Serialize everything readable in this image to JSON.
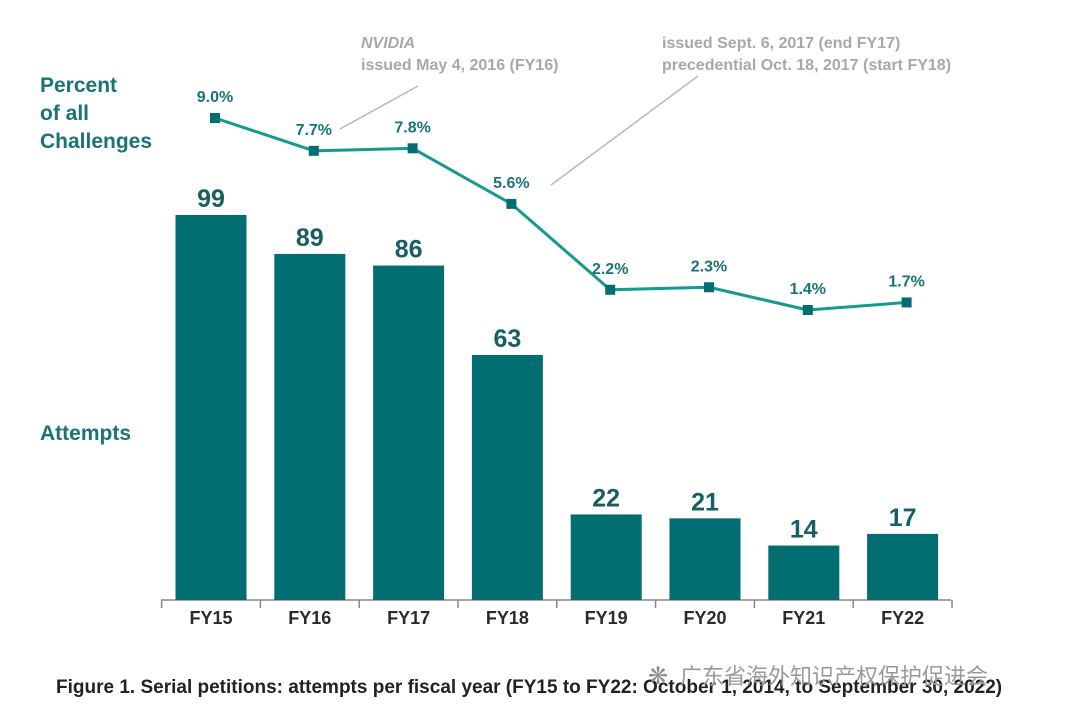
{
  "colors": {
    "bar": "#036e72",
    "line": "#149a90",
    "label": "#1a7475",
    "annotation": "#a8a8a8",
    "axis": "#888888"
  },
  "chart_data": {
    "type": "bar",
    "categories": [
      "FY15",
      "FY16",
      "FY17",
      "FY18",
      "FY19",
      "FY20",
      "FY21",
      "FY22"
    ],
    "series": [
      {
        "name": "Attempts",
        "type": "bar",
        "values": [
          99,
          89,
          86,
          63,
          22,
          21,
          14,
          17
        ],
        "labels": [
          "99",
          "89",
          "86",
          "63",
          "22",
          "21",
          "14",
          "17"
        ]
      },
      {
        "name": "Percent of all Challenges",
        "type": "line",
        "values": [
          9.0,
          7.7,
          7.8,
          5.6,
          2.2,
          2.3,
          1.4,
          1.7
        ],
        "labels": [
          "9.0%",
          "7.7%",
          "7.8%",
          "5.6%",
          "2.2%",
          "2.3%",
          "1.4%",
          "1.7%"
        ]
      }
    ],
    "series_labels": {
      "line_lines": [
        "Percent",
        "of all",
        "Challenges"
      ],
      "bars": "Attempts"
    },
    "annotations": [
      {
        "target": "FY16",
        "lines": [
          "NVIDIA",
          "issued May 4, 2016 (FY16)"
        ]
      },
      {
        "target": "FY18",
        "lines": [
          "issued Sept. 6, 2017 (end FY17)",
          "precedential Oct. 18, 2017 (start FY18)"
        ]
      }
    ],
    "bar_ylim": [
      0,
      105
    ],
    "line_ylim": [
      0,
      10
    ],
    "title": "Figure 1. Serial petitions: attempts per fiscal year (FY15 to FY22: October 1, 2014, to September 30, 2022)",
    "xlabel": "",
    "ylabel": "",
    "grid": false,
    "legend": "none"
  },
  "watermark": "广东省海外知识产权保护促进会"
}
